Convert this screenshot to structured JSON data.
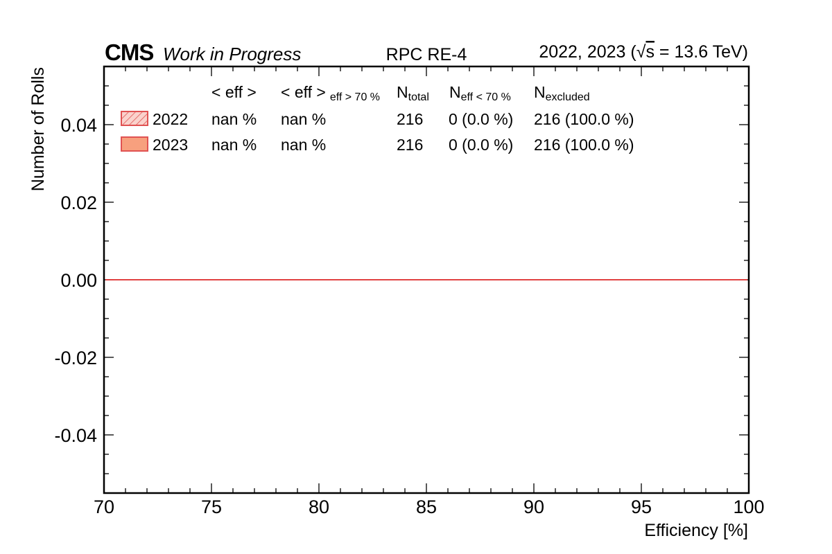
{
  "chart_data": {
    "type": "bar",
    "title_left_bold": "CMS",
    "title_left_italic": "Work in Progress",
    "title_center": "RPC RE-4",
    "title_right": {
      "prefix": "2022, 2023 (",
      "sqrt": "√",
      "s": "s",
      "suffix": " = 13.6 TeV)"
    },
    "xlabel": "Efficiency [%]",
    "ylabel": "Number of Rolls",
    "xlim": [
      70,
      100
    ],
    "ylim": [
      -0.055,
      0.055
    ],
    "xticks": [
      70,
      75,
      80,
      85,
      90,
      95,
      100
    ],
    "xtick_labels": [
      "70",
      "75",
      "80",
      "85",
      "90",
      "95",
      "100"
    ],
    "yticks": [
      -0.04,
      -0.02,
      0.0,
      0.02,
      0.04
    ],
    "ytick_labels": [
      "-0.04",
      "-0.02",
      "0.00",
      "0.02",
      "0.04"
    ],
    "grid": false,
    "legend_placement": "top-left",
    "legend": {
      "headers": [
        {
          "main": "< eff >",
          "sub": ""
        },
        {
          "main": "< eff >",
          "sub": "eff > 70 %"
        },
        {
          "main": "N",
          "sub": "total"
        },
        {
          "main": "N",
          "sub": "eff < 70 %"
        },
        {
          "main": "N",
          "sub": "excluded"
        }
      ]
    },
    "series": [
      {
        "name": "2022",
        "style": "hatched",
        "values": [
          0
        ],
        "mean_eff": "nan %",
        "mean_eff_gt70": "nan %",
        "n_total": "216",
        "n_eff_lt70": "0 (0.0 %)",
        "n_excluded": "216 (100.0 %)"
      },
      {
        "name": "2023",
        "style": "filled",
        "values": [
          0
        ],
        "mean_eff": "nan %",
        "mean_eff_gt70": "nan %",
        "n_total": "216",
        "n_eff_lt70": "0 (0.0 %)",
        "n_excluded": "216 (100.0 %)"
      }
    ],
    "colors": {
      "series_edge": "#e05252",
      "series_fill": "#f7a07e",
      "hatch_fill": "#fad2cc",
      "zero_line": "#e03c3c"
    }
  }
}
